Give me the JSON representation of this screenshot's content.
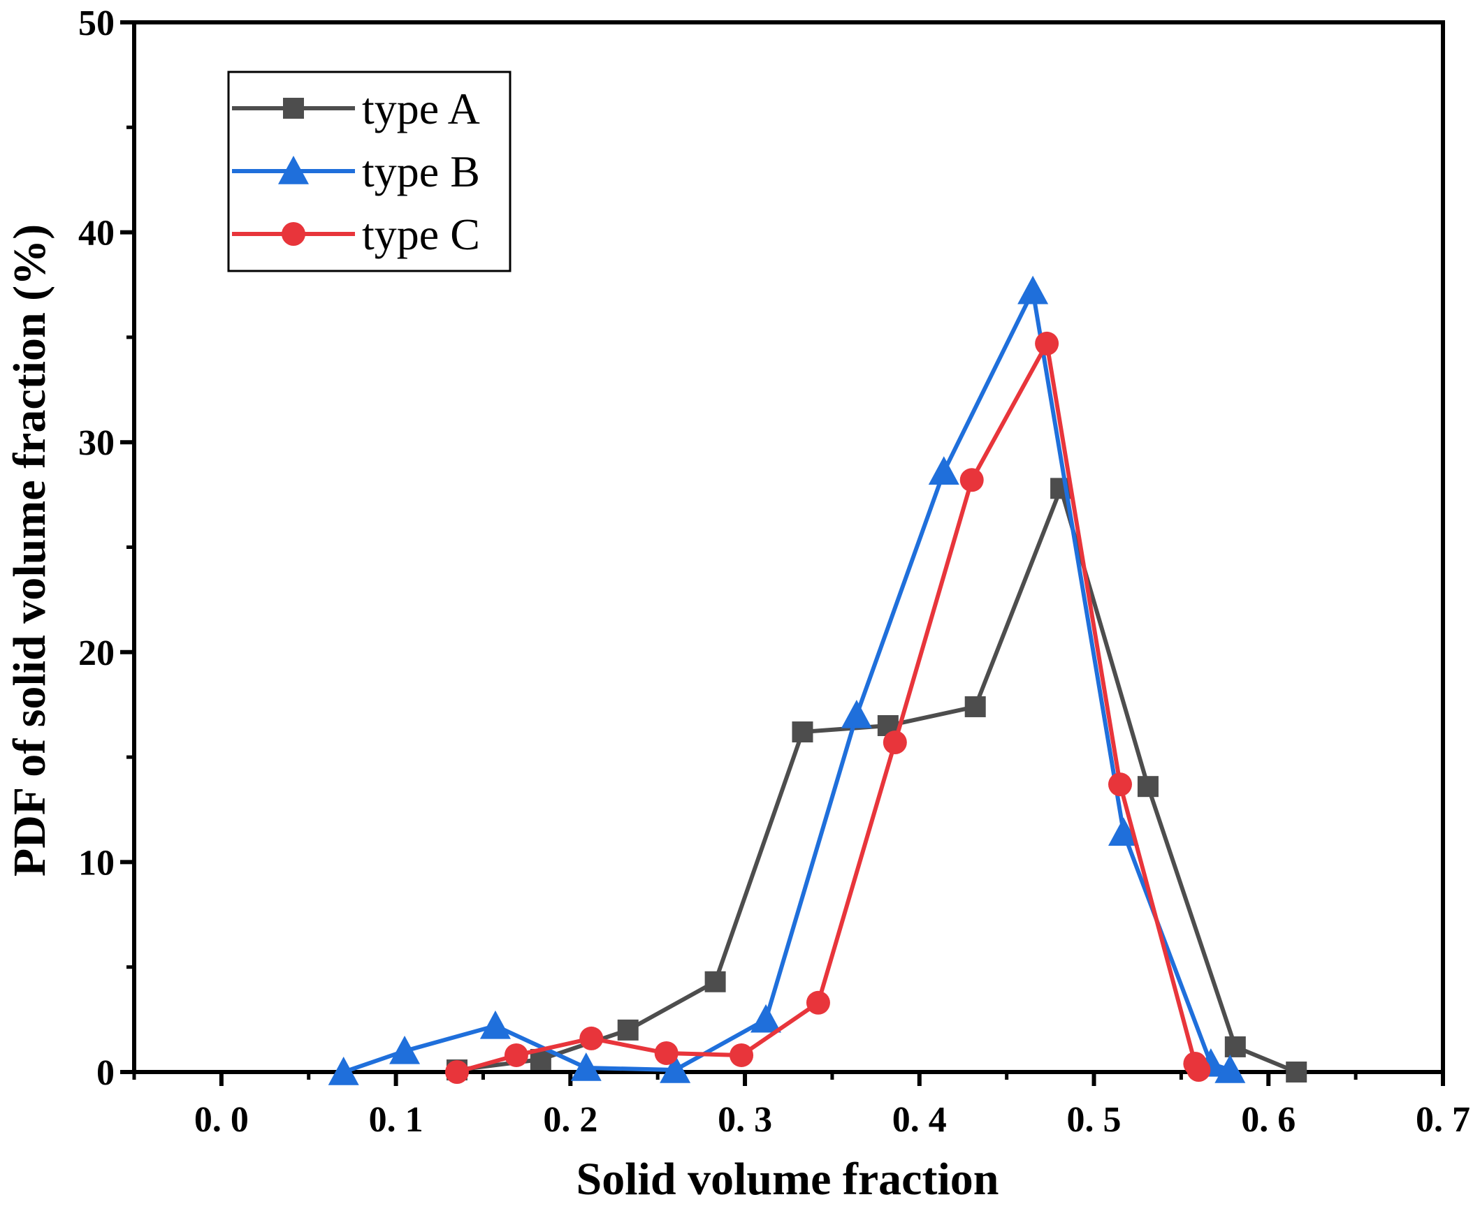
{
  "chart_data": {
    "type": "line",
    "title": "",
    "xlabel": "Solid volume fraction",
    "ylabel": "PDF of solid volume fraction (%)",
    "xlim": [
      -0.05,
      0.7
    ],
    "ylim": [
      0,
      50
    ],
    "xticks": [
      0.0,
      0.1,
      0.2,
      0.3,
      0.4,
      0.5,
      0.6,
      0.7
    ],
    "xtick_labels": [
      "0. 0",
      "0. 1",
      "0. 2",
      "0. 3",
      "0. 4",
      "0. 5",
      "0. 6",
      "0. 7"
    ],
    "yticks": [
      0,
      10,
      20,
      30,
      40,
      50
    ],
    "ytick_labels": [
      "0",
      "10",
      "20",
      "30",
      "40",
      "50"
    ],
    "grid": false,
    "legend_position": "top-left",
    "series": [
      {
        "name": "type A",
        "color": "#4d4d4d",
        "marker": "square",
        "x": [
          0.135,
          0.183,
          0.233,
          0.283,
          0.333,
          0.382,
          0.432,
          0.481,
          0.531,
          0.581,
          0.616
        ],
        "y": [
          0.1,
          0.6,
          2.0,
          4.3,
          16.2,
          16.5,
          17.4,
          27.8,
          13.6,
          1.2,
          0.0
        ]
      },
      {
        "name": "type B",
        "color": "#1f6fdb",
        "marker": "triangle",
        "x": [
          0.07,
          0.105,
          0.157,
          0.209,
          0.26,
          0.312,
          0.364,
          0.414,
          0.465,
          0.517,
          0.567,
          0.578
        ],
        "y": [
          0.0,
          1.0,
          2.2,
          0.2,
          0.1,
          2.5,
          17.0,
          28.6,
          37.2,
          11.4,
          0.4,
          0.1
        ]
      },
      {
        "name": "type C",
        "color": "#e8353b",
        "marker": "circle",
        "x": [
          0.135,
          0.169,
          0.212,
          0.255,
          0.298,
          0.342,
          0.386,
          0.43,
          0.473,
          0.515,
          0.558,
          0.56
        ],
        "y": [
          0.0,
          0.8,
          1.6,
          0.9,
          0.8,
          3.3,
          15.7,
          28.2,
          34.7,
          13.7,
          0.4,
          0.1
        ]
      }
    ]
  }
}
